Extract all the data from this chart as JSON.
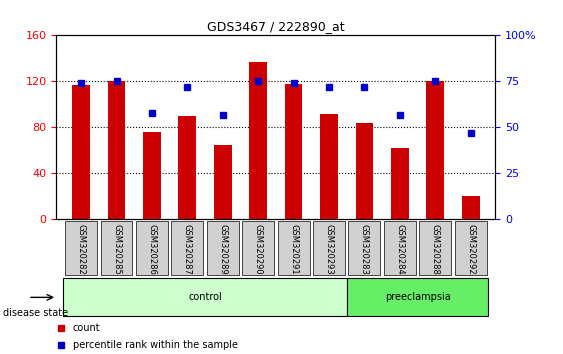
{
  "title": "GDS3467 / 222890_at",
  "samples": [
    "GSM320282",
    "GSM320285",
    "GSM320286",
    "GSM320287",
    "GSM320289",
    "GSM320290",
    "GSM320291",
    "GSM320293",
    "GSM320283",
    "GSM320284",
    "GSM320288",
    "GSM320292"
  ],
  "counts": [
    117,
    120,
    76,
    90,
    65,
    137,
    118,
    92,
    84,
    62,
    120,
    20
  ],
  "percentiles": [
    74,
    75,
    58,
    72,
    57,
    75,
    74,
    72,
    72,
    57,
    75,
    47
  ],
  "bar_color": "#cc0000",
  "marker_color": "#0000cc",
  "ylim_left": [
    0,
    160
  ],
  "ylim_right": [
    0,
    100
  ],
  "yticks_left": [
    0,
    40,
    80,
    120,
    160
  ],
  "yticks_right": [
    0,
    25,
    50,
    75,
    100
  ],
  "ytick_labels_right": [
    "0",
    "25",
    "50",
    "75",
    "100%"
  ],
  "groups": [
    {
      "label": "control",
      "start": 0,
      "end": 8,
      "color": "#ccffcc"
    },
    {
      "label": "preeclampsia",
      "start": 8,
      "end": 12,
      "color": "#66ee66"
    }
  ],
  "group_label_prefix": "disease state",
  "legend_items": [
    {
      "label": "count",
      "color": "#cc0000",
      "marker": "s"
    },
    {
      "label": "percentile rank within the sample",
      "color": "#0000cc",
      "marker": "s"
    }
  ],
  "bar_width": 0.5,
  "grid_color": "black",
  "grid_linestyle": "dotted"
}
